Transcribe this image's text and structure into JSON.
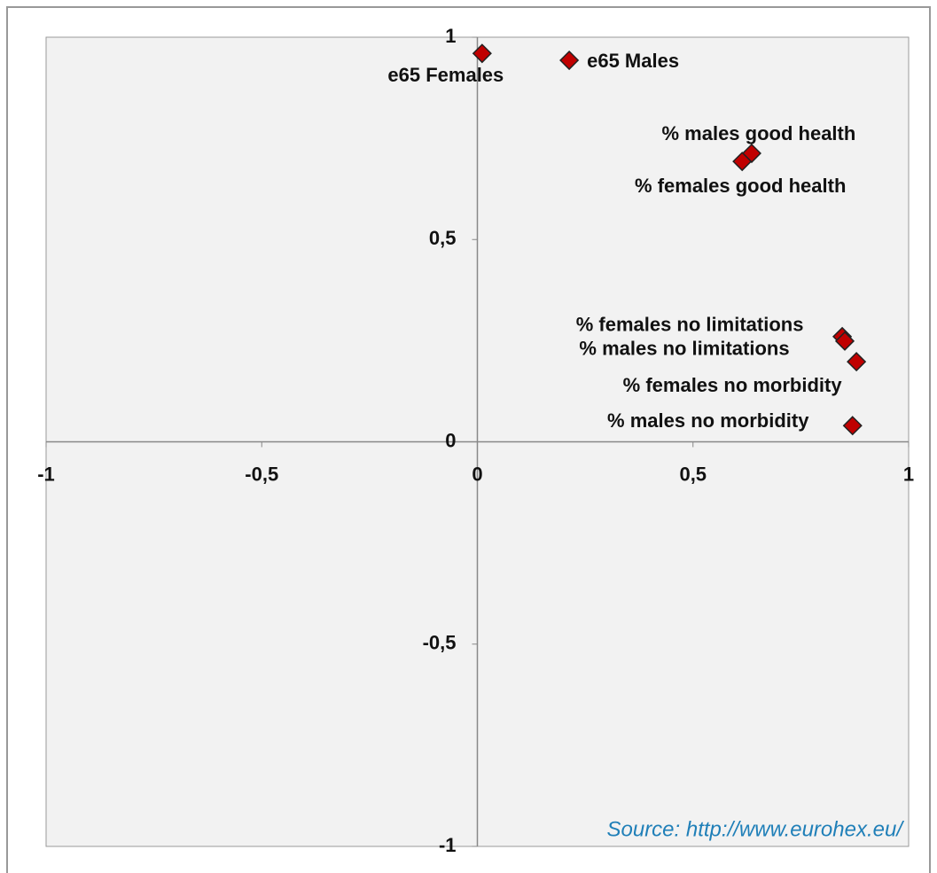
{
  "chart_data": {
    "type": "scatter",
    "xlim": [
      -1,
      1
    ],
    "ylim": [
      -1,
      1
    ],
    "xticks": [
      -1,
      {
        "value": -0.5,
        "label": "-0,5"
      },
      0,
      {
        "value": 0.5,
        "label": "0,5"
      },
      1
    ],
    "yticks": [
      -1,
      {
        "value": -0.5,
        "label": "-0,5"
      },
      0,
      {
        "value": 0.5,
        "label": "0,5"
      },
      1
    ],
    "series": [
      {
        "color": "#c00000",
        "labels": [
          "e65 Females",
          "e65 Males",
          "% males good health",
          "% females good health",
          "% females no limitations",
          "% males no limitations",
          "% females no morbidity",
          "% males no morbidity"
        ],
        "x": [
          0.011,
          0.213,
          0.636,
          0.614,
          0.846,
          0.852,
          0.879,
          0.87
        ],
        "y": [
          0.96,
          0.943,
          0.713,
          0.693,
          0.26,
          0.249,
          0.198,
          0.04
        ]
      }
    ],
    "annotation": "Source: http://www.eurohex.eu/"
  }
}
